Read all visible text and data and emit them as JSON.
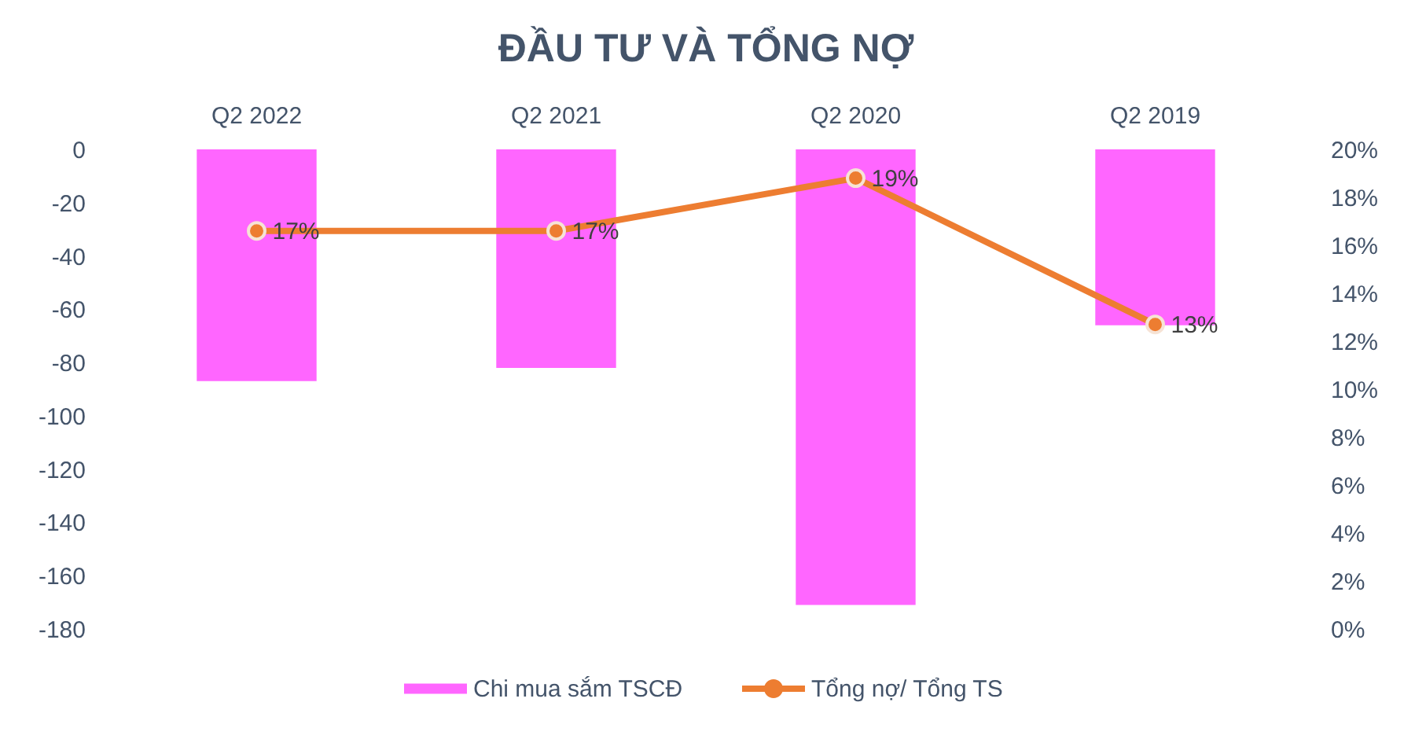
{
  "chart_data": {
    "type": "bar",
    "title": "ĐẦU TƯ VÀ TỔNG NỢ",
    "categories": [
      "Q2 2022",
      "Q2 2021",
      "Q2 2020",
      "Q2 2019"
    ],
    "series": [
      {
        "name": "Chi mua sắm TSCĐ",
        "color": "#ff66ff",
        "values": [
          -87,
          -82,
          -171,
          -66
        ]
      },
      {
        "name": "Tổng nợ/ Tổng TS",
        "type": "line",
        "axis": "y2",
        "color": "#ed7d31",
        "marker": "circle",
        "line_style": "solid",
        "values": [
          16.6,
          16.6,
          18.8,
          12.7
        ],
        "value_labels": [
          "17%",
          "17%",
          "19%",
          "13%"
        ]
      }
    ],
    "ylim": [
      -180,
      0
    ],
    "yticks": [
      0,
      -20,
      -40,
      -60,
      -80,
      -100,
      -120,
      -140,
      -160,
      -180
    ],
    "y2lim": [
      0,
      20
    ],
    "y2ticks": [
      {
        "value": 0,
        "label": "0%"
      },
      {
        "value": 2,
        "label": "2%"
      },
      {
        "value": 4,
        "label": "4%"
      },
      {
        "value": 6,
        "label": "6%"
      },
      {
        "value": 8,
        "label": "8%"
      },
      {
        "value": 10,
        "label": "10%"
      },
      {
        "value": 12,
        "label": "12%"
      },
      {
        "value": 14,
        "label": "14%"
      },
      {
        "value": 16,
        "label": "16%"
      },
      {
        "value": 18,
        "label": "18%"
      },
      {
        "value": 20,
        "label": "20%"
      }
    ],
    "legend": "bottom"
  }
}
